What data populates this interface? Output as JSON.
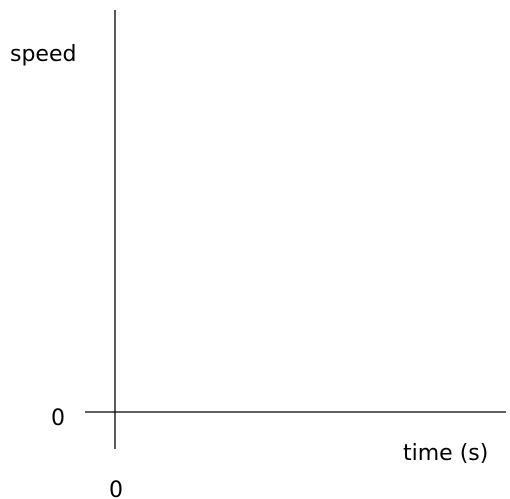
{
  "chart_data": {
    "type": "line",
    "title": "",
    "xlabel": "time (s)",
    "ylabel": "speed",
    "x_ticks": [
      "0"
    ],
    "y_ticks": [
      "0"
    ],
    "series": [],
    "grid": false
  }
}
